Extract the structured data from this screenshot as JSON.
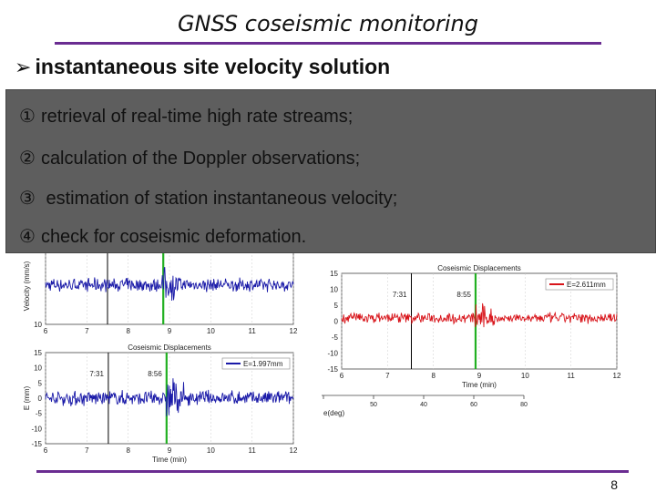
{
  "slide": {
    "title": "GNSS coseismic monitoring",
    "subtitle": "instantaneous site velocity solution",
    "subtitle_bullet_icon": "arrow-bullet-icon",
    "steps": [
      {
        "num": "①",
        "text": "retrieval of real-time high rate streams;"
      },
      {
        "num": "②",
        "text": "calculation of the Doppler observations;"
      },
      {
        "num": "③",
        "text": " estimation of station instantaneous velocity;"
      },
      {
        "num": "④",
        "text": "check for coseismic deformation."
      }
    ],
    "page_number": "8",
    "colors": {
      "accent_rule": "#6a2c91",
      "overlay": "#5e5e5e",
      "series_blue": "#1a1aa8",
      "series_red": "#d8141a",
      "marker_green": "#22b022"
    }
  },
  "chart_data": [
    {
      "type": "line",
      "ylabel": "Velocity (mm/s)",
      "x_ticks": [
        "6",
        "7",
        "8",
        "9",
        "10",
        "11",
        "12"
      ],
      "y_ticks": [
        "-10",
        "10"
      ],
      "xlim": [
        6,
        12
      ],
      "ylim": [
        -20,
        15
      ],
      "markers": [
        {
          "x": 8.85,
          "color": "#22b022"
        },
        {
          "x": 7.5,
          "color": "#000000"
        }
      ],
      "series": [
        {
          "color": "#1a1aa8"
        }
      ]
    },
    {
      "type": "line",
      "title": "Coseismic Displacements",
      "ylabel": "E (mm)",
      "xlabel": "Time (min)",
      "legend": "E=1.997mm",
      "annotations": [
        "7:31",
        "8:56"
      ],
      "x_ticks": [
        "6",
        "7",
        "8",
        "9",
        "10",
        "11",
        "12"
      ],
      "y_ticks": [
        "15",
        "10",
        "5",
        "0",
        "-5",
        "-10",
        "-15"
      ],
      "xlim": [
        6,
        12
      ],
      "ylim": [
        -15,
        15
      ],
      "markers": [
        {
          "x": 7.52,
          "color": "#000000"
        },
        {
          "x": 8.93,
          "color": "#22b022"
        }
      ],
      "series": [
        {
          "color": "#1a1aa8"
        }
      ]
    },
    {
      "type": "line",
      "title": "Coseismic Displacements",
      "xlabel": "Time (min)",
      "legend": "E=2.611mm",
      "annotations": [
        "7:31",
        "8:55"
      ],
      "x_ticks": [
        "6",
        "7",
        "8",
        "9",
        "10",
        "11",
        "12"
      ],
      "y_ticks": [
        "15",
        "10",
        "5",
        "0",
        "-5",
        "-10",
        "-15"
      ],
      "xlim": [
        6,
        12
      ],
      "ylim": [
        -15,
        15
      ],
      "markers": [
        {
          "x": 7.52,
          "color": "#000000"
        },
        {
          "x": 8.92,
          "color": "#22b022"
        }
      ],
      "series": [
        {
          "color": "#d8141a"
        }
      ]
    },
    {
      "type": "scatter",
      "xlabel": "e(deg)",
      "x_ticks": [
        "",
        "50",
        "40",
        "60",
        "80"
      ]
    }
  ]
}
